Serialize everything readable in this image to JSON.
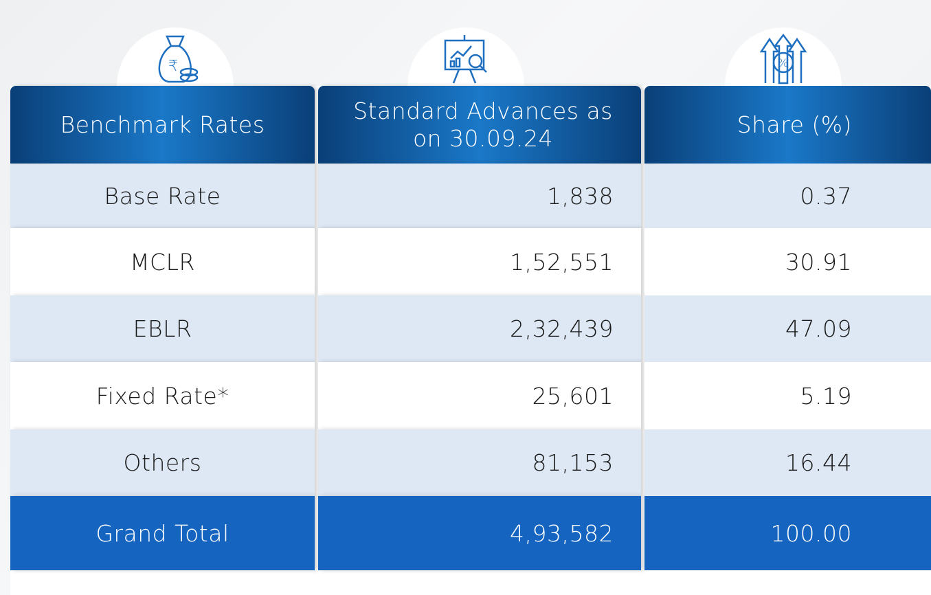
{
  "table": {
    "headers": [
      "Benchmark Rates",
      "Standard Advances as on 30.09.24",
      "Share (%)"
    ],
    "rows": [
      [
        "Base Rate",
        "1,838",
        "0.37"
      ],
      [
        "MCLR",
        "1,52,551",
        "30.91"
      ],
      [
        "EBLR",
        "2,32,439",
        "47.09"
      ],
      [
        "Fixed Rate*",
        "25,601",
        "5.19"
      ],
      [
        "Others",
        "81,153",
        "16.44"
      ]
    ],
    "total": [
      "Grand Total",
      "4,93,582",
      "100.00"
    ]
  }
}
